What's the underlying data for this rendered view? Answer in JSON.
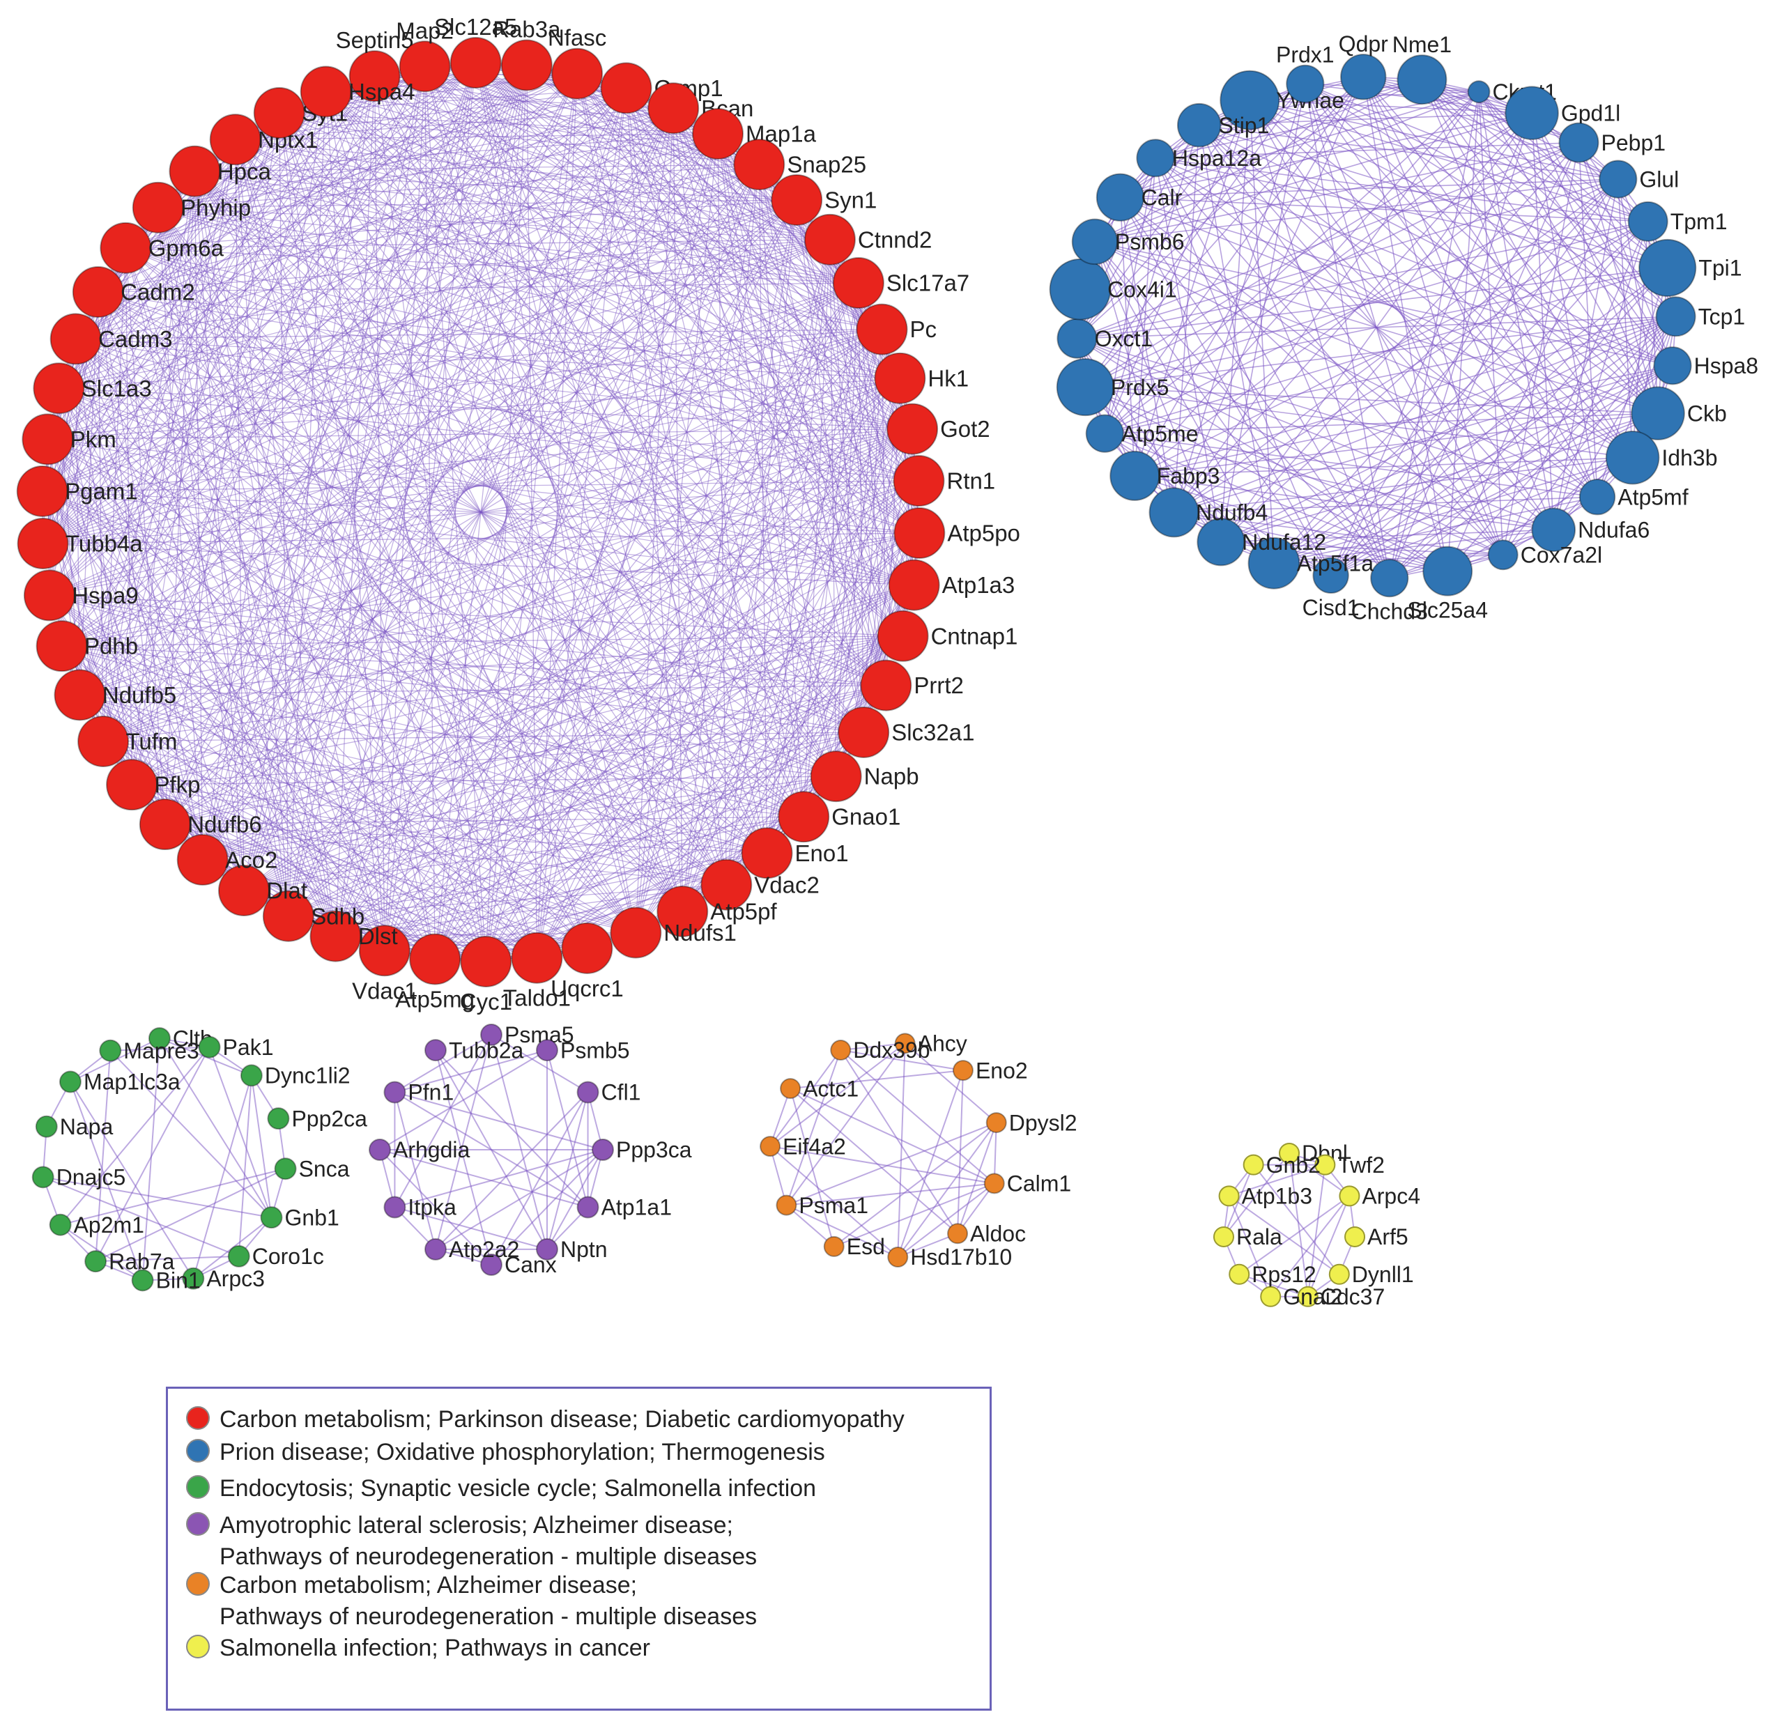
{
  "colors": {
    "edge": "#7b55c4",
    "red": "#e8241d",
    "blue": "#2f74b3",
    "green": "#3aa549",
    "purple": "#8b55b3",
    "orange": "#e98226",
    "yellow": "#efef4e",
    "legend_border": "#6a62b8"
  },
  "clusters": [
    {
      "id": "red",
      "nodes": [
        "Septin5",
        "Map2",
        "Slc12a5",
        "Rab3a",
        "Nfasc",
        "Crmp1",
        "Bcan",
        "Map1a",
        "Snap25",
        "Syn1",
        "Ctnnd2",
        "Slc17a7",
        "Pc",
        "Hk1",
        "Got2",
        "Rtn1",
        "Atp5po",
        "Atp1a3",
        "Cntnap1",
        "Prrt2",
        "Slc32a1",
        "Napb",
        "Gnao1",
        "Eno1",
        "Vdac2",
        "Atp5pf",
        "Ndufs1",
        "Uqcrc1",
        "Taldo1",
        "Cyc1",
        "Atp5mg",
        "Vdac1",
        "Dlst",
        "Sdhb",
        "Dlat",
        "Aco2",
        "Ndufb6",
        "Pfkp",
        "Tufm",
        "Ndufb5",
        "Pdhb",
        "Hspa9",
        "Tubb4a",
        "Pgam1",
        "Pkm",
        "Slc1a3",
        "Cadm3",
        "Cadm2",
        "Gpm6a",
        "Phyhip",
        "Hpca",
        "Nptx1",
        "Syt1",
        "Hspa4"
      ]
    },
    {
      "id": "blue",
      "nodes": [
        "Ywhae",
        "Prdx1",
        "Qdpr",
        "Nme1",
        "Ckmt1",
        "Gpd1l",
        "Pebp1",
        "Glul",
        "Tpm1",
        "Tpi1",
        "Tcp1",
        "Hspa8",
        "Ckb",
        "Idh3b",
        "Atp5mf",
        "Ndufa6",
        "Cox7a2l",
        "Slc25a4",
        "Chchd3",
        "Cisd1",
        "Atp5f1a",
        "Ndufa12",
        "Ndufb4",
        "Fabp3",
        "Atp5me",
        "Prdx5",
        "Oxct1",
        "Cox4i1",
        "Psmb6",
        "Calr",
        "Hspa12a",
        "Stip1"
      ]
    },
    {
      "id": "green",
      "nodes": [
        "Cltb",
        "Pak1",
        "Dync1li2",
        "Ppp2ca",
        "Snca",
        "Gnb1",
        "Coro1c",
        "Arpc3",
        "Bin1",
        "Rab7a",
        "Ap2m1",
        "Dnajc5",
        "Napa",
        "Map1lc3a",
        "Mapre3"
      ]
    },
    {
      "id": "purple",
      "nodes": [
        "Psma5",
        "Psmb5",
        "Cfl1",
        "Ppp3ca",
        "Atp1a1",
        "Nptn",
        "Canx",
        "Atp2a2",
        "Itpka",
        "Arhgdia",
        "Pfn1",
        "Tubb2a"
      ]
    },
    {
      "id": "orange",
      "nodes": [
        "Ahcy",
        "Eno2",
        "Dpysl2",
        "Calm1",
        "Aldoc",
        "Hsd17b10",
        "Esd",
        "Psma1",
        "Eif4a2",
        "Actc1",
        "Ddx39b"
      ]
    },
    {
      "id": "yellow",
      "nodes": [
        "Dbnl",
        "Twf2",
        "Arpc4",
        "Arf5",
        "Dynll1",
        "Cdc37",
        "Gnai2",
        "Rps12",
        "Rala",
        "Atp1b3",
        "Gnb2"
      ]
    }
  ],
  "legend": [
    {
      "color": "red",
      "line1": "Carbon metabolism; Parkinson disease; Diabetic cardiomyopathy",
      "line2": ""
    },
    {
      "color": "blue",
      "line1": "Prion disease; Oxidative phosphorylation; Thermogenesis",
      "line2": ""
    },
    {
      "color": "green",
      "line1": "Endocytosis; Synaptic vesicle cycle; Salmonella infection",
      "line2": ""
    },
    {
      "color": "purple",
      "line1": "Amyotrophic lateral sclerosis; Alzheimer disease;",
      "line2": "Pathways of neurodegeneration - multiple diseases"
    },
    {
      "color": "orange",
      "line1": "Carbon metabolism; Alzheimer disease;",
      "line2": "Pathways of neurodegeneration - multiple diseases"
    },
    {
      "color": "yellow",
      "line1": "Salmonella infection; Pathways in cancer",
      "line2": ""
    }
  ]
}
